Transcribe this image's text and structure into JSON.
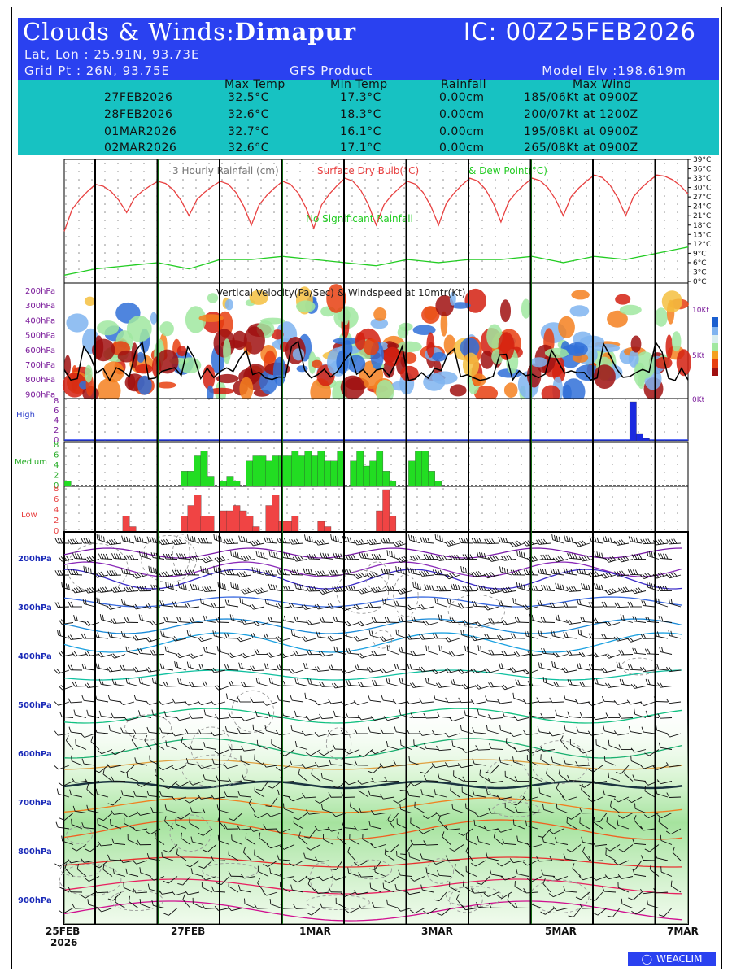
{
  "header": {
    "title_prefix": "Clouds & Winds:",
    "location": "Dimapur",
    "ic": "IC: 00Z25FEB2026",
    "latlon": "Lat, Lon : 25.91N, 93.73E",
    "gridpt": "Grid Pt  : 26N, 93.75E",
    "product": "GFS Product",
    "elevation": "Model Elv :198.619m"
  },
  "summary": {
    "columns": [
      "Max Temp",
      "Min Temp",
      "Rainfall",
      "Max Wind"
    ],
    "rows": [
      {
        "date": "27FEB2026",
        "max": "32.5°C",
        "min": "17.3°C",
        "rain": "0.00cm",
        "wind": "185/06Kt at 0900Z"
      },
      {
        "date": "28FEB2026",
        "max": "32.6°C",
        "min": "18.3°C",
        "rain": "0.00cm",
        "wind": "200/07Kt at 1200Z"
      },
      {
        "date": "01MAR2026",
        "max": "32.7°C",
        "min": "16.1°C",
        "rain": "0.00cm",
        "wind": "195/08Kt at 0900Z"
      },
      {
        "date": "02MAR2026",
        "max": "32.6°C",
        "min": "17.1°C",
        "rain": "0.00cm",
        "wind": "265/08Kt at 0900Z"
      }
    ]
  },
  "panel1": {
    "title_a": "3 Hourly Rainfall (cm)",
    "title_b": "Surface Dry Bulb(°C)",
    "title_c": "& Dew Point(°C)",
    "note": "No Significant Rainfall",
    "y_ticks": [
      "39°C",
      "36°C",
      "33°C",
      "30°C",
      "27°C",
      "24°C",
      "21°C",
      "18°C",
      "15°C",
      "12°C",
      "9°C",
      "6°C",
      "3°C",
      "0°C"
    ]
  },
  "panel2": {
    "title": "Vertical Velocity(Pa/Sec) & Windspeed at 10mtr(Kt)",
    "p_ticks": [
      "200hPa",
      "300hPa",
      "400hPa",
      "500hPa",
      "600hPa",
      "700hPa",
      "800hPa",
      "900hPa"
    ],
    "right_ticks": [
      "10Kt",
      "5Kt",
      "0Kt"
    ]
  },
  "clouds": {
    "high_label": "High",
    "medium_label": "Medium",
    "low_label": "Low",
    "ticks": [
      "8",
      "6",
      "4",
      "2",
      "0"
    ]
  },
  "panel4": {
    "p_ticks": [
      "200hPa",
      "300hPa",
      "400hPa",
      "500hPa",
      "600hPa",
      "700hPa",
      "800hPa",
      "900hPa"
    ]
  },
  "x_axis": {
    "labels": [
      "25FEB",
      "27FEB",
      "1MAR",
      "3MAR",
      "5MAR",
      "7MAR"
    ],
    "year": "2026"
  },
  "logo": "WEACLIM",
  "colors": {
    "header_bg": "#2a41f0",
    "table_bg": "#17c2c2",
    "dry_bulb": "#e84040",
    "dew_point": "#22cc22",
    "midnight_line": "#000000",
    "noon_line": "#22cc22"
  },
  "chart_data": [
    {
      "type": "line",
      "x": [
        "25FEB 00Z",
        "25FEB 12Z",
        "26FEB 00Z",
        "26FEB 12Z",
        "27FEB 00Z",
        "27FEB 12Z",
        "28FEB 00Z",
        "28FEB 12Z",
        "1MAR 00Z",
        "1MAR 12Z",
        "2MAR 00Z",
        "2MAR 12Z",
        "3MAR 00Z",
        "3MAR 12Z",
        "4MAR 00Z",
        "4MAR 12Z",
        "5MAR 00Z",
        "5MAR 12Z",
        "6MAR 00Z",
        "6MAR 12Z",
        "7MAR 00Z"
      ],
      "series": [
        {
          "name": "Surface Dry Bulb(°C)",
          "values": [
            16,
            31,
            22,
            32,
            21,
            32,
            18,
            32,
            17,
            33,
            18,
            32,
            18,
            33,
            19,
            33,
            21,
            34,
            21,
            34,
            28
          ]
        },
        {
          "name": "Dew Point(°C)",
          "values": [
            2,
            4,
            5,
            6,
            4,
            7,
            7,
            8,
            7,
            6,
            5,
            7,
            6,
            7,
            7,
            8,
            6,
            8,
            7,
            9,
            11
          ]
        }
      ],
      "ylim": [
        0,
        39
      ]
    },
    {
      "type": "bar",
      "name": "High cloud",
      "x_index": [
        87,
        88,
        89
      ],
      "values": [
        8,
        1.5,
        0.5
      ],
      "ylim": [
        0,
        8
      ]
    },
    {
      "type": "bar",
      "name": "Medium cloud",
      "x_index": [
        0,
        18,
        19,
        20,
        21,
        22,
        24,
        25,
        26,
        28,
        29,
        30,
        31,
        32,
        33,
        34,
        35,
        36,
        37,
        38,
        39,
        40,
        41,
        42,
        44,
        45,
        46,
        47,
        48,
        49,
        50,
        53,
        54,
        55,
        56,
        57
      ],
      "values": [
        1,
        3,
        3,
        6,
        7,
        2,
        1,
        2,
        1,
        5,
        6,
        6,
        5,
        6,
        6,
        6,
        7,
        6,
        7,
        6,
        7,
        5,
        5,
        7,
        5,
        7,
        4,
        5,
        7,
        3,
        1,
        5,
        7,
        7,
        3,
        1
      ],
      "ylim": [
        0,
        8
      ]
    },
    {
      "type": "bar",
      "name": "Low cloud",
      "x_index": [
        9,
        10,
        18,
        19,
        20,
        21,
        22,
        24,
        25,
        26,
        27,
        28,
        29,
        31,
        32,
        33,
        34,
        35,
        39,
        40,
        48,
        49,
        50
      ],
      "values": [
        3,
        1,
        3,
        5,
        7,
        3,
        3,
        4,
        4,
        5,
        4,
        3,
        1,
        5,
        7,
        2,
        2,
        3,
        2,
        1,
        4,
        8,
        3
      ],
      "ylim": [
        0,
        8
      ]
    }
  ]
}
